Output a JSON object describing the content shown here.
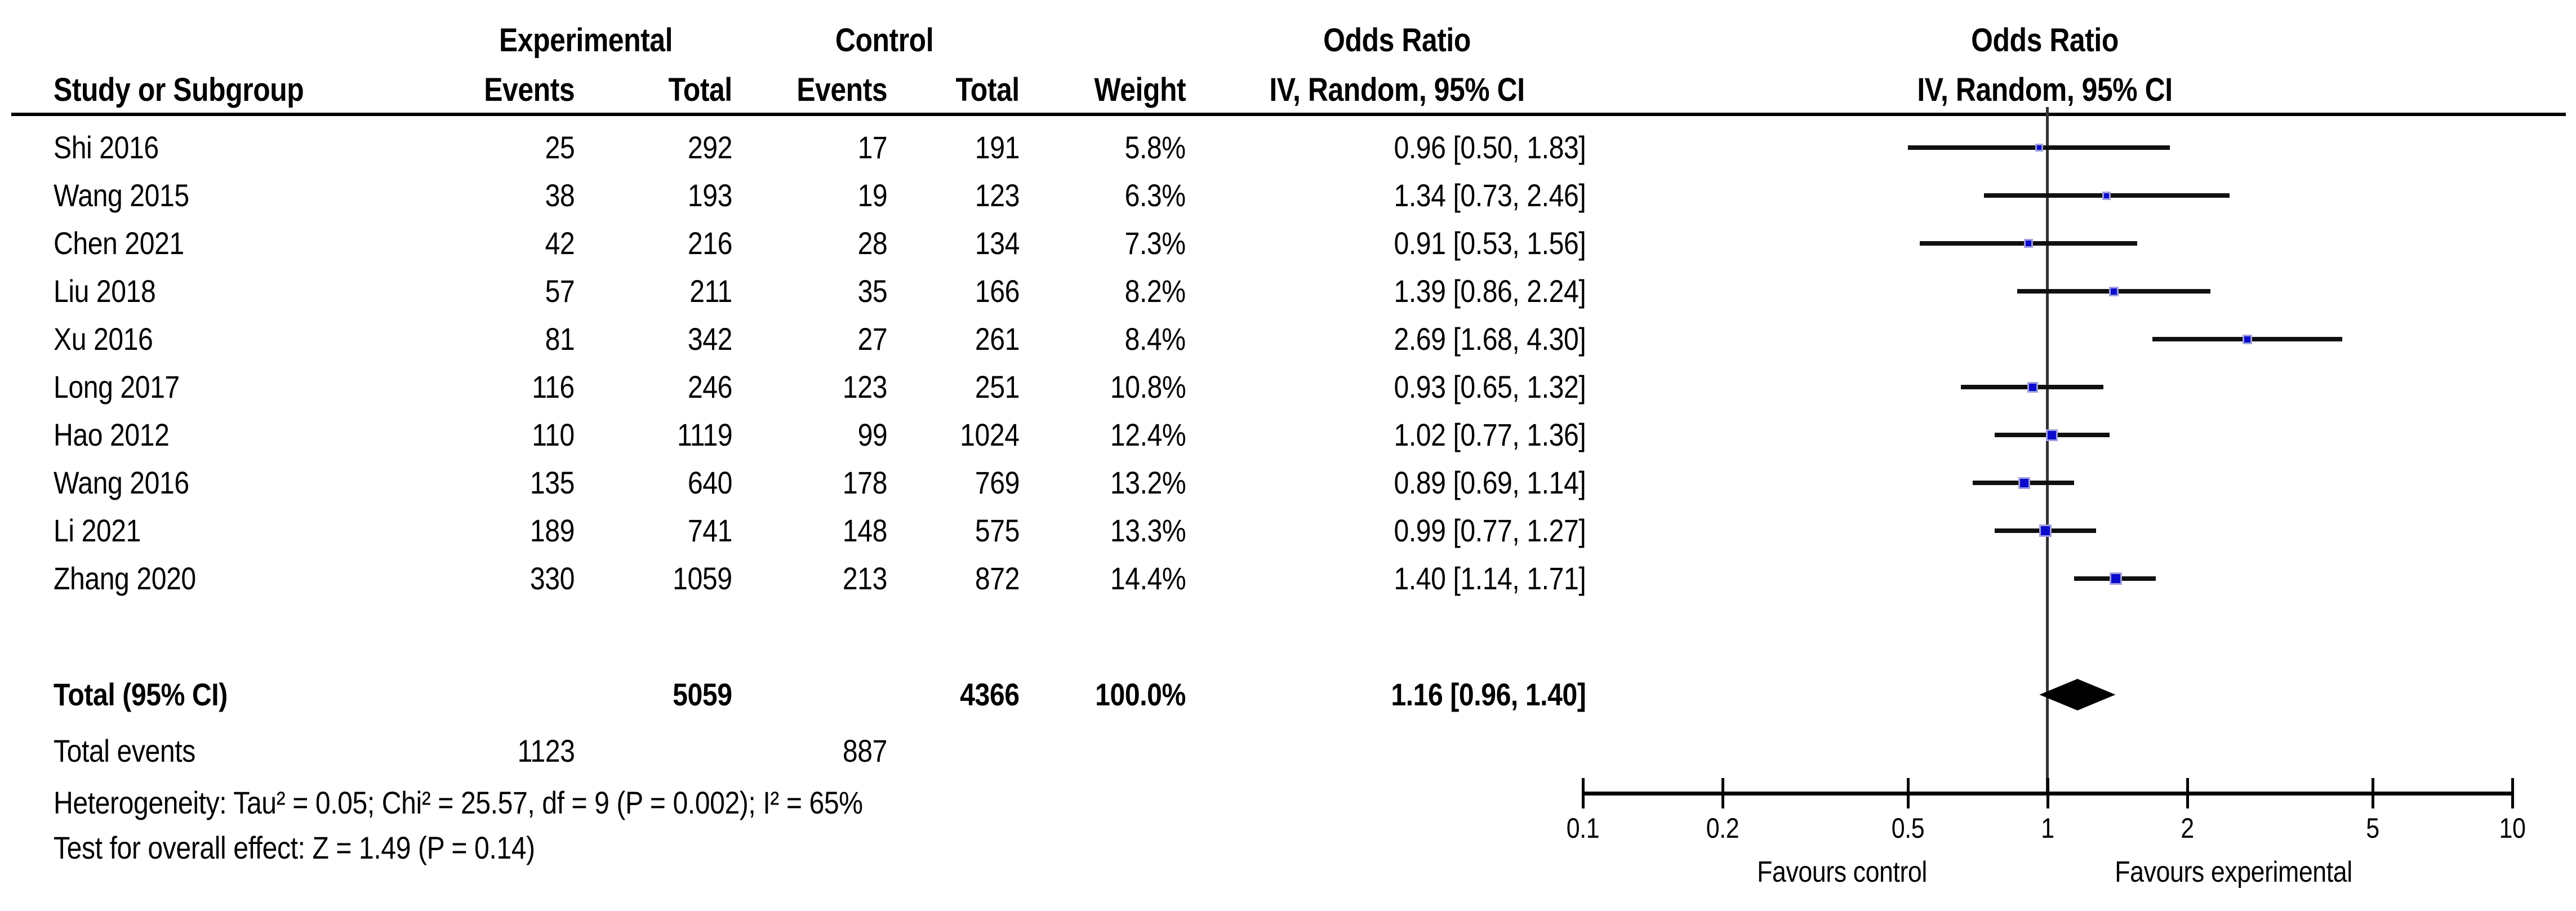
{
  "table": {
    "group_headers": {
      "experimental": "Experimental",
      "control": "Control",
      "odds_ratio_left": "Odds Ratio",
      "odds_ratio_right": "Odds Ratio"
    },
    "col_headers": {
      "study": "Study or Subgroup",
      "exp_events": "Events",
      "exp_total": "Total",
      "ctrl_events": "Events",
      "ctrl_total": "Total",
      "weight": "Weight",
      "method_left": "IV, Random, 95% CI",
      "method_right": "IV, Random, 95% CI"
    }
  },
  "total_events": {
    "label": "Total events",
    "experimental": "1123",
    "control": "887"
  },
  "footnotes": {
    "heterogeneity": "Heterogeneity: Tau² = 0.05; Chi² = 25.57, df = 9 (P = 0.002); I² = 65%",
    "overall_effect": "Test for overall effect: Z = 1.49 (P = 0.14)"
  },
  "colors": {
    "marker_blue": "#0b0bcb",
    "diamond_black": "#000000",
    "ci_line": "#101010",
    "reference_line": "#333333"
  },
  "chart_data": {
    "type": "scatter",
    "subtype": "forest-plot-meta-analysis",
    "effect_measure": "Odds Ratio",
    "model": "IV, Random, 95% CI",
    "axis": {
      "scale": "log",
      "min": 0.1,
      "max": 10,
      "ticks": [
        0.1,
        0.2,
        0.5,
        1,
        2,
        5,
        10
      ],
      "tick_labels": [
        "0.1",
        "0.2",
        "0.5",
        "1",
        "2",
        "5",
        "10"
      ],
      "favours_left": "Favours control",
      "favours_right": "Favours experimental"
    },
    "studies": [
      {
        "study": "Shi 2016",
        "exp_events": 25,
        "exp_total": 292,
        "ctrl_events": 17,
        "ctrl_total": 191,
        "weight": "5.8%",
        "weight_value": 5.8,
        "or": 0.96,
        "ci_low": 0.5,
        "ci_high": 1.83,
        "or_text": "0.96 [0.50, 1.83]"
      },
      {
        "study": "Wang 2015",
        "exp_events": 38,
        "exp_total": 193,
        "ctrl_events": 19,
        "ctrl_total": 123,
        "weight": "6.3%",
        "weight_value": 6.3,
        "or": 1.34,
        "ci_low": 0.73,
        "ci_high": 2.46,
        "or_text": "1.34 [0.73, 2.46]"
      },
      {
        "study": "Chen 2021",
        "exp_events": 42,
        "exp_total": 216,
        "ctrl_events": 28,
        "ctrl_total": 134,
        "weight": "7.3%",
        "weight_value": 7.3,
        "or": 0.91,
        "ci_low": 0.53,
        "ci_high": 1.56,
        "or_text": "0.91 [0.53, 1.56]"
      },
      {
        "study": "Liu 2018",
        "exp_events": 57,
        "exp_total": 211,
        "ctrl_events": 35,
        "ctrl_total": 166,
        "weight": "8.2%",
        "weight_value": 8.2,
        "or": 1.39,
        "ci_low": 0.86,
        "ci_high": 2.24,
        "or_text": "1.39 [0.86, 2.24]"
      },
      {
        "study": "Xu 2016",
        "exp_events": 81,
        "exp_total": 342,
        "ctrl_events": 27,
        "ctrl_total": 261,
        "weight": "8.4%",
        "weight_value": 8.4,
        "or": 2.69,
        "ci_low": 1.68,
        "ci_high": 4.3,
        "or_text": "2.69 [1.68, 4.30]"
      },
      {
        "study": "Long 2017",
        "exp_events": 116,
        "exp_total": 246,
        "ctrl_events": 123,
        "ctrl_total": 251,
        "weight": "10.8%",
        "weight_value": 10.8,
        "or": 0.93,
        "ci_low": 0.65,
        "ci_high": 1.32,
        "or_text": "0.93 [0.65, 1.32]"
      },
      {
        "study": "Hao 2012",
        "exp_events": 110,
        "exp_total": 1119,
        "ctrl_events": 99,
        "ctrl_total": 1024,
        "weight": "12.4%",
        "weight_value": 12.4,
        "or": 1.02,
        "ci_low": 0.77,
        "ci_high": 1.36,
        "or_text": "1.02 [0.77, 1.36]"
      },
      {
        "study": "Wang 2016",
        "exp_events": 135,
        "exp_total": 640,
        "ctrl_events": 178,
        "ctrl_total": 769,
        "weight": "13.2%",
        "weight_value": 13.2,
        "or": 0.89,
        "ci_low": 0.69,
        "ci_high": 1.14,
        "or_text": "0.89 [0.69, 1.14]"
      },
      {
        "study": "Li 2021",
        "exp_events": 189,
        "exp_total": 741,
        "ctrl_events": 148,
        "ctrl_total": 575,
        "weight": "13.3%",
        "weight_value": 13.3,
        "or": 0.99,
        "ci_low": 0.77,
        "ci_high": 1.27,
        "or_text": "0.99 [0.77, 1.27]"
      },
      {
        "study": "Zhang 2020",
        "exp_events": 330,
        "exp_total": 1059,
        "ctrl_events": 213,
        "ctrl_total": 872,
        "weight": "14.4%",
        "weight_value": 14.4,
        "or": 1.4,
        "ci_low": 1.14,
        "ci_high": 1.71,
        "or_text": "1.40 [1.14, 1.71]"
      }
    ],
    "total": {
      "label": "Total (95% CI)",
      "exp_total": "5059",
      "ctrl_total": "4366",
      "weight": "100.0%",
      "or": 1.16,
      "ci_low": 0.96,
      "ci_high": 1.4,
      "or_text": "1.16 [0.96, 1.40]"
    }
  }
}
